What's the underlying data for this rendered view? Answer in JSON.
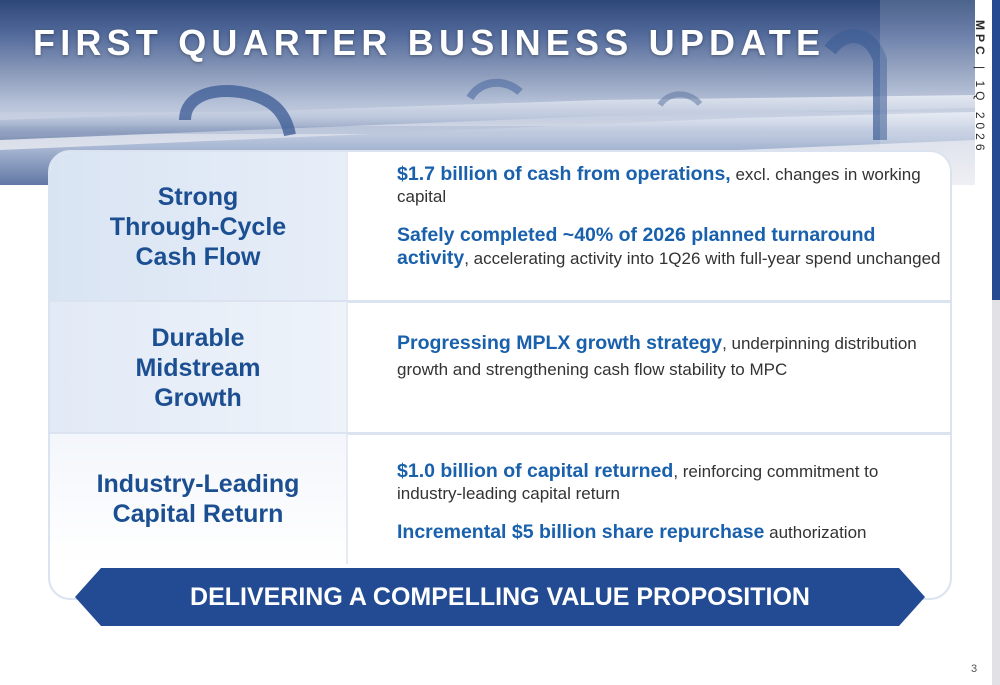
{
  "header": {
    "title": "FIRST QUARTER BUSINESS UPDATE"
  },
  "side_label": {
    "company": "MPC",
    "separator": "|",
    "period": "1Q 2026"
  },
  "pillars": [
    {
      "title": "Strong\nThrough-Cycle\nCash Flow",
      "bullets": [
        {
          "highlight": "$1.7 billion of cash from operations,",
          "text": " excl. changes in working capital"
        },
        {
          "highlight": "Safely completed ~40% of 2026 planned turnaround activity",
          "text": ", accelerating activity into 1Q26 with full-year spend unchanged"
        }
      ]
    },
    {
      "title": "Durable\nMidstream\nGrowth",
      "bullets": [
        {
          "highlight": "Progressing MPLX growth strategy",
          "text": ", underpinning distribution growth and strengthening cash flow stability to MPC"
        }
      ]
    },
    {
      "title": "Industry-Leading\nCapital Return",
      "bullets": [
        {
          "highlight": "$1.0 billion of capital returned",
          "text": ", reinforcing commitment to industry-leading capital return"
        },
        {
          "highlight": "Incremental $5 billion share repurchase",
          "text": " authorization"
        }
      ]
    }
  ],
  "banner": {
    "text": "DELIVERING A COMPELLING VALUE PROPOSITION"
  },
  "page_number": "3",
  "colors": {
    "brand_blue": "#234b93",
    "highlight_blue": "#1960ad",
    "pillar_text": "#1c4f92",
    "body_text": "#333333"
  },
  "icons": {
    "header_image": "pipelines-photo"
  }
}
